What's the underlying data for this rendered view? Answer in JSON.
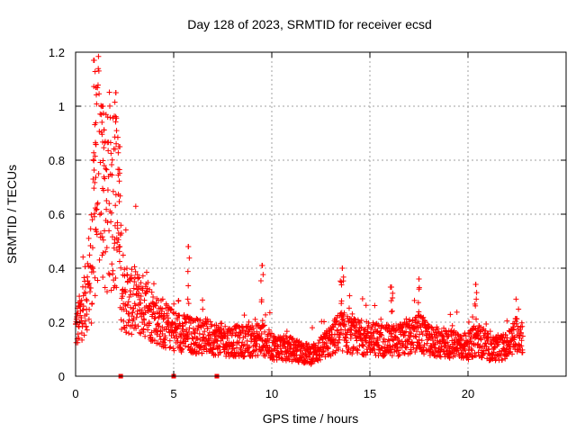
{
  "chart_data": {
    "type": "scatter",
    "title": "Day 128 of 2023, SRMTID for receiver ecsd",
    "xlabel": "GPS time / hours",
    "ylabel": "SRMTID / TECUs",
    "xlim": [
      0,
      25
    ],
    "ylim": [
      0,
      1.2
    ],
    "xticks": [
      0,
      5,
      10,
      15,
      20
    ],
    "xtick_labels": [
      "0",
      "5",
      "10",
      "15",
      "20"
    ],
    "yticks": [
      0,
      0.2,
      0.4,
      0.6,
      0.8,
      1.0,
      1.2
    ],
    "ytick_labels": [
      "0",
      "0.2",
      "0.4",
      "0.6",
      "0.8",
      "1",
      "1.2"
    ],
    "grid": true,
    "marker": "+",
    "series_color": "#ff0000",
    "series": [
      {
        "name": "SRMTID",
        "envelope_x": [
          0,
          0.2,
          0.4,
          0.6,
          0.8,
          1.0,
          1.2,
          1.4,
          1.6,
          1.8,
          2.0,
          2.2,
          2.4,
          2.6,
          3.0,
          3.5,
          4.0,
          4.5,
          5.0,
          5.5,
          6.0,
          6.5,
          7.0,
          8.0,
          9.0,
          9.5,
          10.0,
          11.0,
          11.5,
          12.0,
          12.5,
          13.0,
          13.5,
          14.0,
          15.0,
          16.0,
          17.0,
          17.5,
          18.0,
          19.0,
          20.0,
          20.5,
          21.0,
          22.0,
          22.5,
          22.8
        ],
        "envelope_median": [
          0.17,
          0.21,
          0.26,
          0.31,
          0.42,
          0.62,
          0.8,
          0.7,
          0.62,
          0.66,
          0.72,
          0.5,
          0.33,
          0.28,
          0.27,
          0.26,
          0.22,
          0.19,
          0.17,
          0.16,
          0.15,
          0.15,
          0.14,
          0.13,
          0.13,
          0.14,
          0.11,
          0.1,
          0.09,
          0.08,
          0.1,
          0.13,
          0.17,
          0.15,
          0.14,
          0.13,
          0.14,
          0.16,
          0.13,
          0.12,
          0.11,
          0.14,
          0.1,
          0.11,
          0.16,
          0.15
        ],
        "peaks": [
          {
            "x": 0.95,
            "y": 1.17
          },
          {
            "x": 1.05,
            "y": 1.07
          },
          {
            "x": 1.4,
            "y": 1.0
          },
          {
            "x": 2.05,
            "y": 1.05
          },
          {
            "x": 2.2,
            "y": 0.85
          },
          {
            "x": 5.75,
            "y": 0.48
          },
          {
            "x": 9.5,
            "y": 0.41
          },
          {
            "x": 13.6,
            "y": 0.4
          },
          {
            "x": 17.5,
            "y": 0.36
          },
          {
            "x": 20.4,
            "y": 0.34
          },
          {
            "x": 16.1,
            "y": 0.33
          }
        ],
        "zero_points": [
          2.3,
          5.0,
          7.2
        ]
      }
    ]
  }
}
